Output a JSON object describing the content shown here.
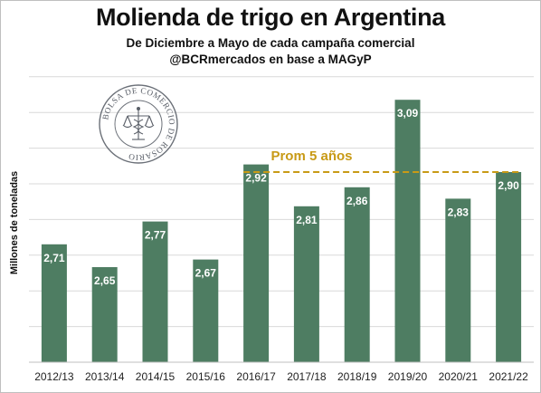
{
  "header": {
    "title": "Molienda de trigo en Argentina",
    "subtitle": "De Diciembre a Mayo de cada campaña  comercial",
    "source": "@BCRmercados en base a MAGyP"
  },
  "seal": {
    "text": "BOLSA DE COMERCIO DE ROSARIO"
  },
  "chart_data": {
    "type": "bar",
    "title": "Molienda de trigo en Argentina",
    "subtitle": "De Diciembre a Mayo de cada campaña  comercial",
    "ylabel": "Millones de toneladas",
    "xlabel": "",
    "categories": [
      "2012/13",
      "2013/14",
      "2014/15",
      "2015/16",
      "2016/17",
      "2017/18",
      "2018/19",
      "2019/20",
      "2020/21",
      "2021/22"
    ],
    "values": [
      2.71,
      2.65,
      2.77,
      2.67,
      2.92,
      2.81,
      2.86,
      3.09,
      2.83,
      2.9
    ],
    "value_labels": [
      "2,71",
      "2,65",
      "2,77",
      "2,67",
      "2,92",
      "2,81",
      "2,86",
      "3,09",
      "2,83",
      "2,90"
    ],
    "ylim": [
      2.4,
      3.15
    ],
    "grid": true,
    "bar_color": "#4e7d62",
    "reference_line": {
      "label": "Prom 5 años",
      "value": 2.9,
      "color": "#c89a16"
    }
  }
}
